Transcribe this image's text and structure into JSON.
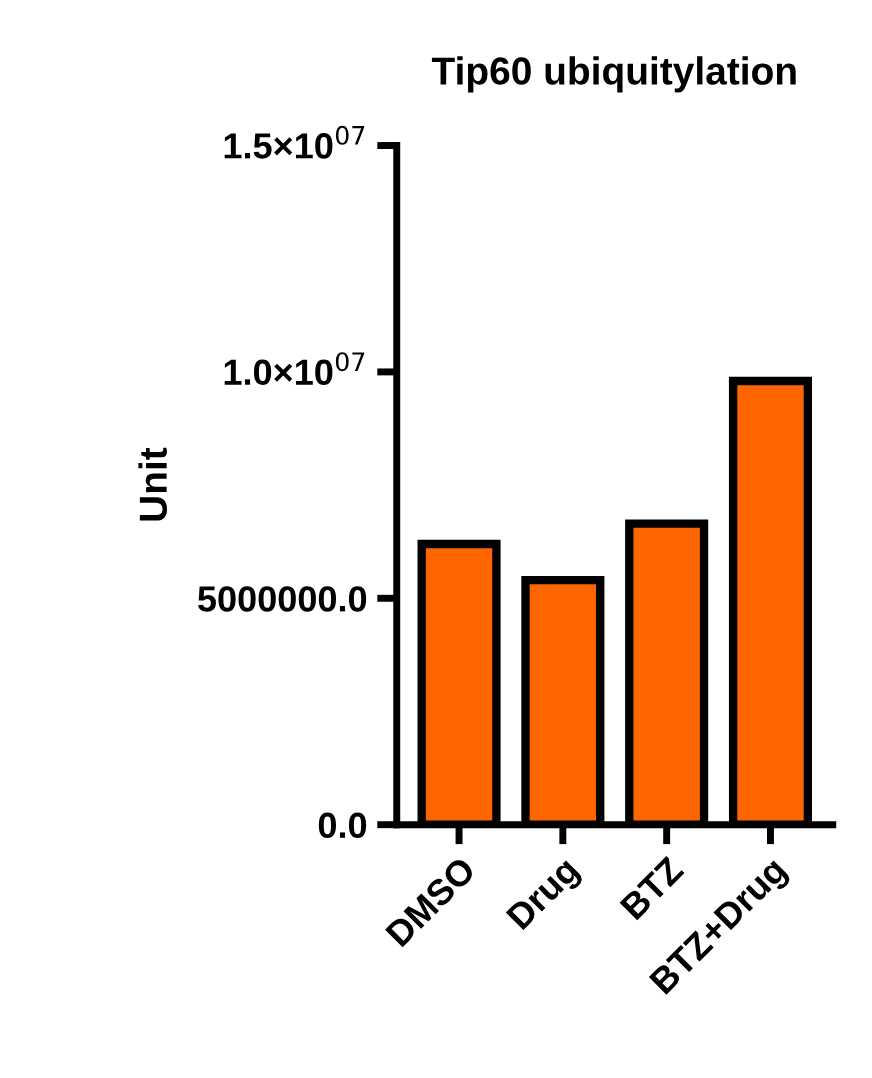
{
  "chart_data": {
    "type": "bar",
    "title": "Tip60 ubiquitylation",
    "ylabel": "Unit",
    "categories": [
      "DMSO",
      "Drug",
      "BTZ",
      "BTZ+Drug"
    ],
    "values": [
      6200000,
      5400000,
      6650000,
      9800000
    ],
    "color": "#ff6600",
    "ylim": [
      0,
      15000000
    ],
    "yticks": [
      {
        "value": 0,
        "label": "0.0"
      },
      {
        "value": 5000000,
        "label": "5000000.0"
      },
      {
        "value": 10000000,
        "label": "1.0×10$^{07}$"
      },
      {
        "value": 15000000,
        "label": "1.5×10$^{07}$"
      }
    ],
    "grid": false
  }
}
